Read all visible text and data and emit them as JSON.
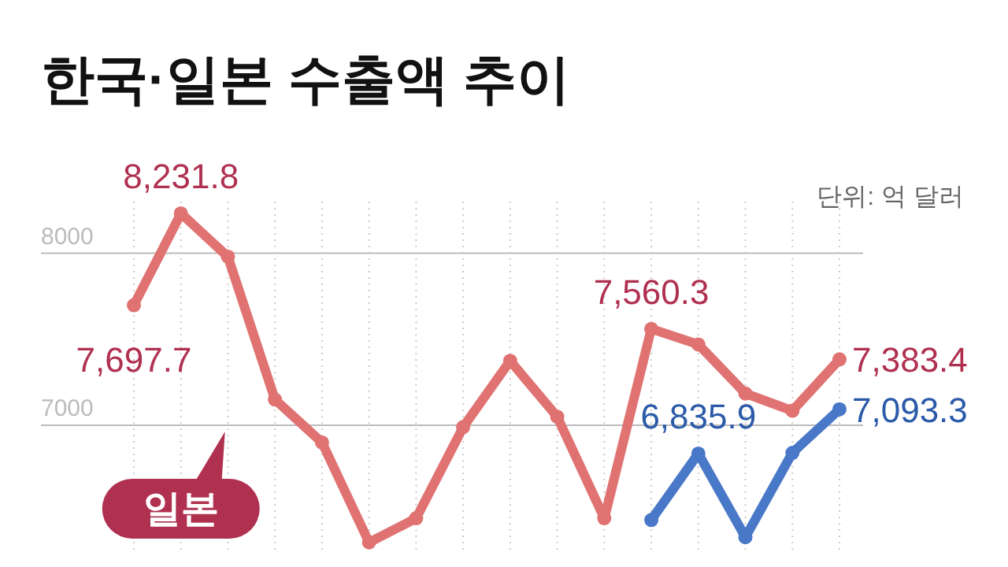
{
  "chart_data": {
    "type": "line",
    "title": "한국·일본 수출액 추이",
    "annotations": [
      "단위: 억 달러"
    ],
    "categories": [
      null,
      null,
      null,
      null,
      null,
      null,
      null,
      null,
      null,
      null,
      null,
      null,
      null,
      null,
      null,
      null
    ],
    "ylim": [
      6250,
      8300
    ],
    "yticks": [
      7000,
      8000
    ],
    "grid": true,
    "marker": "circle",
    "line_style": "solid",
    "series": [
      {
        "name": "일본",
        "color": "#e07272",
        "values": [
          7697.7,
          8231.8,
          7980,
          7150,
          6900,
          6320,
          6460,
          6990,
          7375,
          7050,
          6460,
          7560.3,
          7470,
          7185,
          7085,
          7383.4
        ],
        "value_labels": [
          "7,697.7",
          "8,231.8",
          null,
          null,
          null,
          null,
          null,
          null,
          null,
          null,
          null,
          "7,560.3",
          null,
          null,
          null,
          "7,383.4"
        ]
      },
      {
        "color": "#4a78c8",
        "values": [
          null,
          null,
          null,
          null,
          null,
          null,
          null,
          null,
          null,
          null,
          null,
          6450,
          6835.9,
          6350,
          6840,
          7093.3
        ],
        "value_labels": [
          null,
          null,
          null,
          null,
          null,
          null,
          null,
          null,
          null,
          null,
          null,
          null,
          "6,835.9",
          null,
          null,
          "7,093.3"
        ]
      }
    ]
  }
}
